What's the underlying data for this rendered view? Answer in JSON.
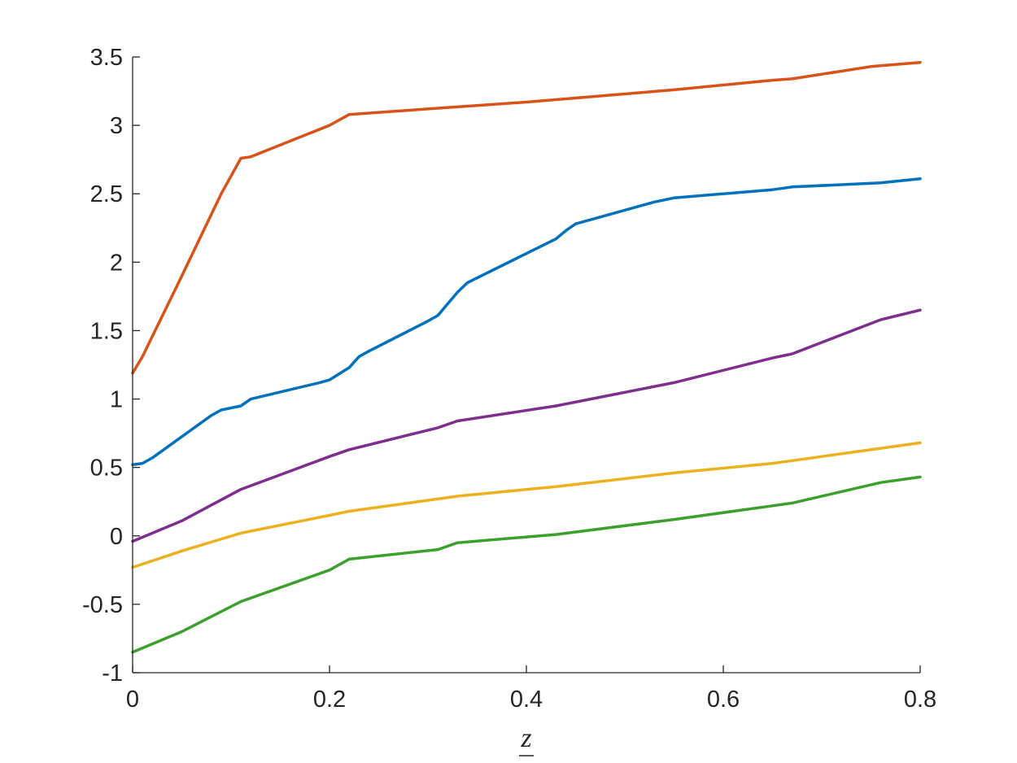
{
  "chart_data": {
    "type": "line",
    "xlabel": "z",
    "ylabel": "",
    "title": "",
    "xlim": [
      0,
      0.8
    ],
    "ylim": [
      -1,
      3.5
    ],
    "xticks": [
      "0",
      "0.2",
      "0.4",
      "0.6",
      "0.8"
    ],
    "yticks": [
      "-1",
      "-0.5",
      "0",
      "0.5",
      "1",
      "1.5",
      "2",
      "2.5",
      "3",
      "3.5"
    ],
    "grid": false,
    "series": [
      {
        "color": "#D95319",
        "points": [
          [
            0,
            1.19
          ],
          [
            0.01,
            1.31
          ],
          [
            0.05,
            1.9
          ],
          [
            0.09,
            2.5
          ],
          [
            0.11,
            2.76
          ],
          [
            0.12,
            2.77
          ],
          [
            0.2,
            3.0
          ],
          [
            0.22,
            3.08
          ],
          [
            0.3,
            3.12
          ],
          [
            0.4,
            3.17
          ],
          [
            0.45,
            3.2
          ],
          [
            0.55,
            3.26
          ],
          [
            0.65,
            3.33
          ],
          [
            0.67,
            3.34
          ],
          [
            0.75,
            3.43
          ],
          [
            0.8,
            3.46
          ]
        ]
      },
      {
        "color": "#0072BD",
        "points": [
          [
            0,
            0.52
          ],
          [
            0.01,
            0.53
          ],
          [
            0.02,
            0.57
          ],
          [
            0.08,
            0.88
          ],
          [
            0.09,
            0.92
          ],
          [
            0.11,
            0.95
          ],
          [
            0.12,
            1.0
          ],
          [
            0.19,
            1.12
          ],
          [
            0.2,
            1.14
          ],
          [
            0.22,
            1.23
          ],
          [
            0.23,
            1.31
          ],
          [
            0.24,
            1.35
          ],
          [
            0.3,
            1.57
          ],
          [
            0.31,
            1.61
          ],
          [
            0.33,
            1.78
          ],
          [
            0.34,
            1.85
          ],
          [
            0.43,
            2.17
          ],
          [
            0.44,
            2.23
          ],
          [
            0.45,
            2.28
          ],
          [
            0.53,
            2.44
          ],
          [
            0.55,
            2.47
          ],
          [
            0.65,
            2.53
          ],
          [
            0.67,
            2.55
          ],
          [
            0.76,
            2.58
          ],
          [
            0.8,
            2.61
          ]
        ]
      },
      {
        "color": "#7E2F8E",
        "points": [
          [
            0,
            -0.04
          ],
          [
            0.05,
            0.11
          ],
          [
            0.11,
            0.34
          ],
          [
            0.2,
            0.58
          ],
          [
            0.22,
            0.63
          ],
          [
            0.31,
            0.79
          ],
          [
            0.33,
            0.84
          ],
          [
            0.43,
            0.95
          ],
          [
            0.55,
            1.12
          ],
          [
            0.65,
            1.3
          ],
          [
            0.67,
            1.33
          ],
          [
            0.76,
            1.58
          ],
          [
            0.8,
            1.65
          ]
        ]
      },
      {
        "color": "#EDB120",
        "points": [
          [
            0,
            -0.23
          ],
          [
            0.05,
            -0.11
          ],
          [
            0.11,
            0.02
          ],
          [
            0.2,
            0.15
          ],
          [
            0.22,
            0.18
          ],
          [
            0.31,
            0.27
          ],
          [
            0.33,
            0.29
          ],
          [
            0.43,
            0.36
          ],
          [
            0.55,
            0.46
          ],
          [
            0.65,
            0.53
          ],
          [
            0.67,
            0.55
          ],
          [
            0.76,
            0.64
          ],
          [
            0.8,
            0.68
          ]
        ]
      },
      {
        "color": "#3CA02D",
        "points": [
          [
            0,
            -0.85
          ],
          [
            0.05,
            -0.7
          ],
          [
            0.11,
            -0.48
          ],
          [
            0.2,
            -0.25
          ],
          [
            0.22,
            -0.17
          ],
          [
            0.31,
            -0.1
          ],
          [
            0.33,
            -0.05
          ],
          [
            0.43,
            0.01
          ],
          [
            0.55,
            0.12
          ],
          [
            0.65,
            0.22
          ],
          [
            0.67,
            0.24
          ],
          [
            0.76,
            0.39
          ],
          [
            0.8,
            0.43
          ]
        ]
      }
    ]
  }
}
